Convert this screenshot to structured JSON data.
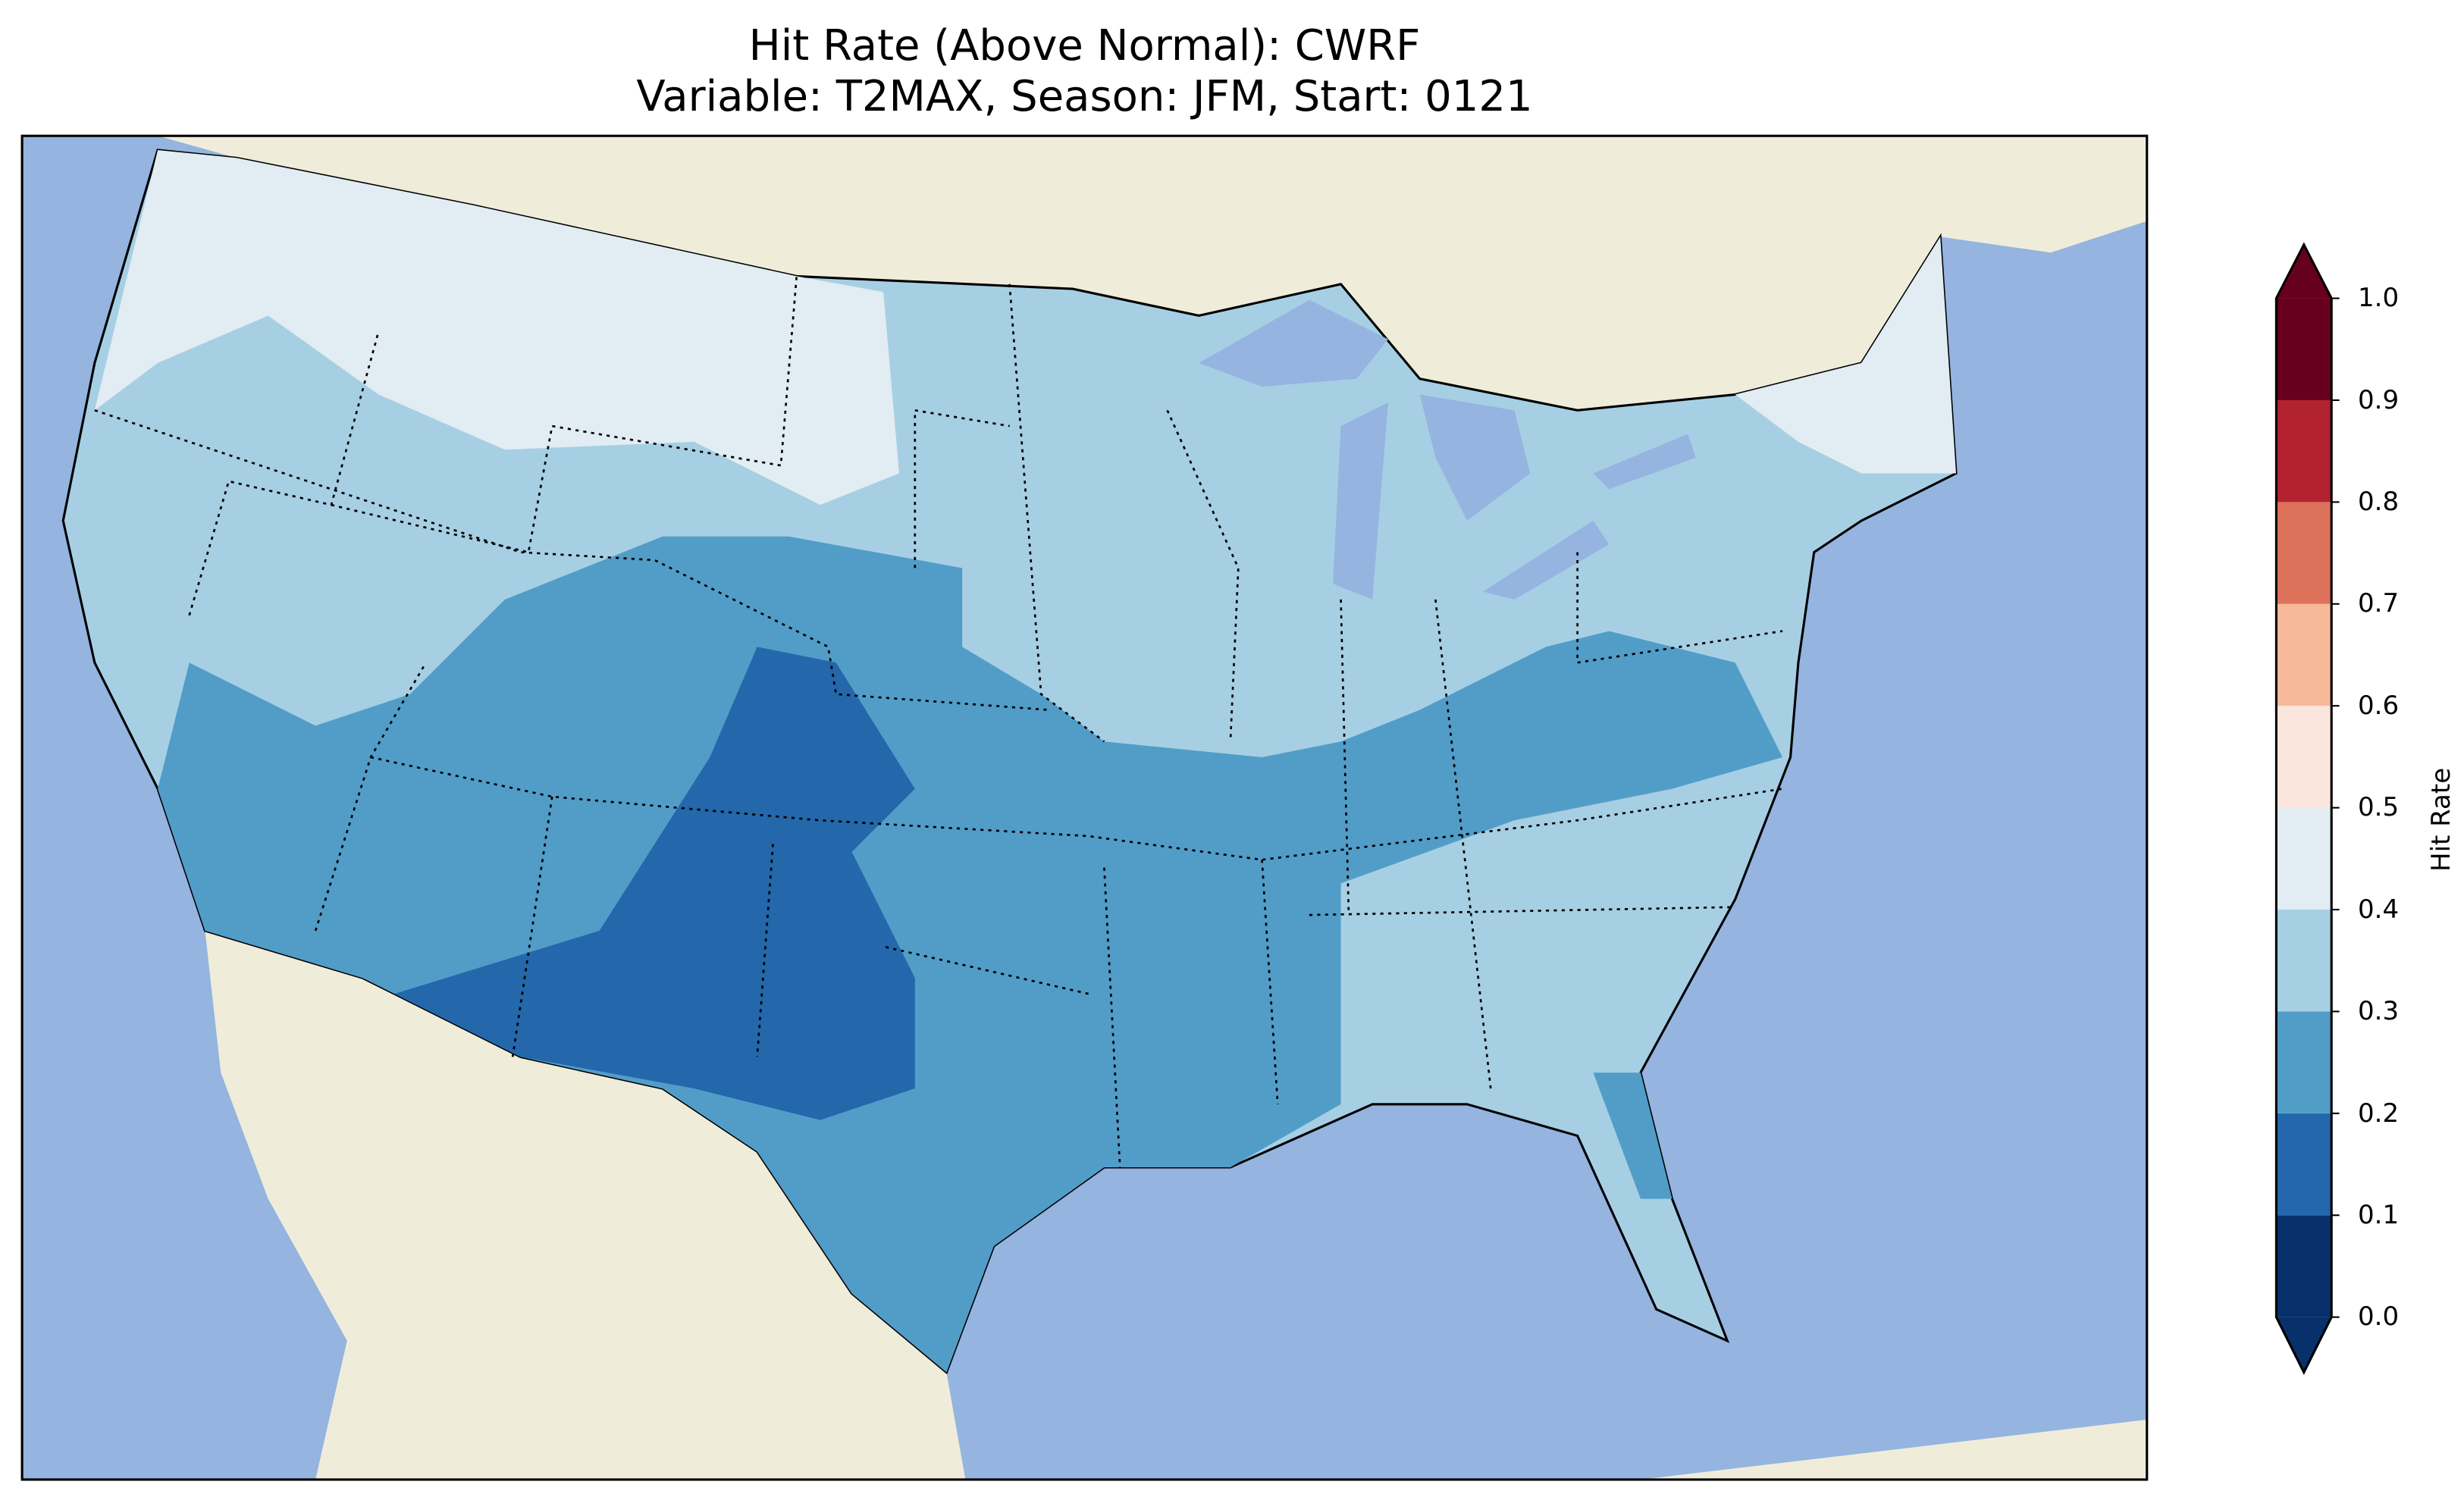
{
  "title": {
    "line1": "Hit Rate (Above Normal): CWRF",
    "line2": "Variable: T2MAX, Season: JFM, Start: 0121"
  },
  "map_colors": {
    "ocean": "#95b4e0",
    "land": "#efedda"
  },
  "colorbar": {
    "label": "Hit Rate",
    "ticks": [
      "0.0",
      "0.1",
      "0.2",
      "0.3",
      "0.4",
      "0.5",
      "0.6",
      "0.7",
      "0.8",
      "0.9",
      "1.0"
    ],
    "bins": [
      {
        "range": [
          0.0,
          0.1
        ],
        "color": "#08306b"
      },
      {
        "range": [
          0.1,
          0.2
        ],
        "color": "#2467ab"
      },
      {
        "range": [
          0.2,
          0.3
        ],
        "color": "#529dc8"
      },
      {
        "range": [
          0.3,
          0.4
        ],
        "color": "#a7cfe4"
      },
      {
        "range": [
          0.4,
          0.5
        ],
        "color": "#e1ecf3"
      },
      {
        "range": [
          0.5,
          0.6
        ],
        "color": "#fae6dc"
      },
      {
        "range": [
          0.6,
          0.7
        ],
        "color": "#f6b999"
      },
      {
        "range": [
          0.7,
          0.8
        ],
        "color": "#dd725a"
      },
      {
        "range": [
          0.8,
          0.9
        ],
        "color": "#b2222f"
      },
      {
        "range": [
          0.9,
          1.0
        ],
        "color": "#67001f"
      }
    ],
    "extend": "both"
  }
}
